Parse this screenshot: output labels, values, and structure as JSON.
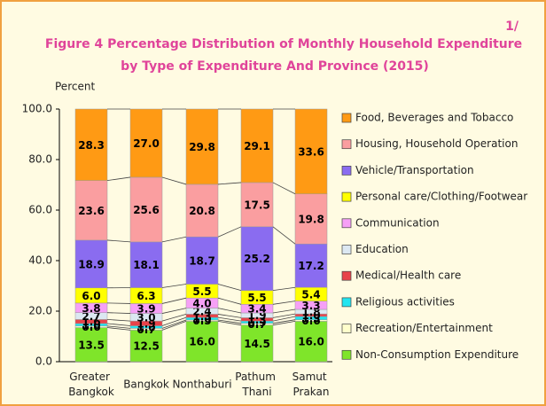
{
  "chart_data": {
    "type": "stacked_bar",
    "note": "1/",
    "title": [
      "Figure  4  Percentage Distribution of Monthly Household Expenditure",
      "by Type of Expenditure And Province (2015)"
    ],
    "ylabel": "Percent",
    "categories": [
      "Greater Bangkok",
      "Bangkok",
      "Nonthaburi",
      "Pathum Thani",
      "Samut Prakan"
    ],
    "ylim": [
      0,
      100
    ],
    "yticks": [
      {
        "value": 0,
        "label": "0.0"
      },
      {
        "value": 20,
        "label": "20.0"
      },
      {
        "value": 40,
        "label": "40.0"
      },
      {
        "value": 60,
        "label": "60.0"
      },
      {
        "value": 80,
        "label": "80.0"
      },
      {
        "value": 100,
        "label": "100.0"
      }
    ],
    "series": [
      {
        "name": "Non-Consumption Expenditure",
        "color": "#7fe52a",
        "values": [
          13.5,
          12.5,
          16,
          14.5,
          16
        ],
        "value_labels": [
          "13.5",
          "12.5",
          "16.0",
          "14.5",
          "16.0"
        ]
      },
      {
        "name": "Recreation/Entertainment",
        "color": "#ffffcc",
        "values": [
          0.6,
          0.7,
          0.5,
          0.7,
          0.6
        ],
        "value_labels": [
          "0.6",
          "0.7",
          "0.5",
          "0.7",
          "0.6"
        ]
      },
      {
        "name": "Religious activities",
        "color": "#22e5f0",
        "values": [
          1,
          1,
          1,
          0.9,
          1.3
        ],
        "value_labels": [
          "1.0",
          "1.0",
          "1.0",
          "0.9",
          "1.3"
        ]
      },
      {
        "name": "Medical/Health care",
        "color": "#e8434a",
        "values": [
          1.6,
          1.9,
          1.3,
          1.3,
          1
        ],
        "value_labels": [
          "1.6",
          "1.9",
          "1.3",
          "1.3",
          "1.0"
        ]
      },
      {
        "name": "Education",
        "color": "#dce8f2",
        "values": [
          2.7,
          3,
          2.4,
          1.9,
          1.8
        ],
        "value_labels": [
          "2.7",
          "3.0",
          "2.4",
          "1.9",
          "1.8"
        ]
      },
      {
        "name": "Communication",
        "color": "#f6a0f6",
        "values": [
          3.8,
          3.9,
          4,
          3.4,
          3.3
        ],
        "value_labels": [
          "3.8",
          "3.9",
          "4.0",
          "3.4",
          "3.3"
        ]
      },
      {
        "name": "Personal care/Clothing/Footwear",
        "color": "#ffff00",
        "values": [
          6,
          6.3,
          5.5,
          5.5,
          5.4
        ],
        "value_labels": [
          "6.0",
          "6.3",
          "5.5",
          "5.5",
          "5.4"
        ]
      },
      {
        "name": "Vehicle/Transportation",
        "color": "#8a6cf0",
        "values": [
          18.9,
          18.1,
          18.7,
          25.2,
          17.2
        ],
        "value_labels": [
          "18.9",
          "18.1",
          "18.7",
          "25.2",
          "17.2"
        ]
      },
      {
        "name": "Housing, Household Operation",
        "color": "#fa9ea0",
        "values": [
          23.6,
          25.6,
          20.8,
          17.5,
          19.8
        ],
        "value_labels": [
          "23.6",
          "25.6",
          "20.8",
          "17.5",
          "19.8"
        ]
      },
      {
        "name": "Food, Beverages and Tobacco",
        "color": "#ff9a14",
        "values": [
          28.3,
          27,
          29.8,
          29.1,
          33.6
        ],
        "value_labels": [
          "28.3",
          "27.0",
          "29.8",
          "29.1",
          "33.6"
        ]
      }
    ]
  }
}
